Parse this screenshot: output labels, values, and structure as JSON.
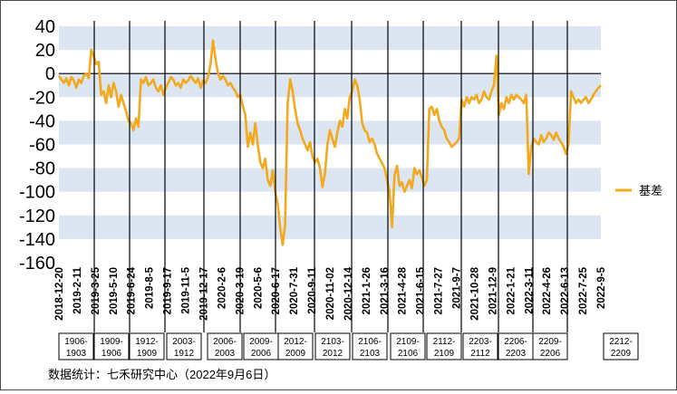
{
  "chart_data": {
    "type": "line",
    "title": "",
    "xlabel": "",
    "ylabel": "",
    "ylim": [
      -160,
      40
    ],
    "yticks": [
      40,
      20,
      0,
      -20,
      -40,
      -60,
      -80,
      -100,
      -120,
      -140,
      -160
    ],
    "xlim": [
      "2018-12-20",
      "2022-09-05"
    ],
    "xticks": [
      "2018-12-20",
      "2019-2-11",
      "2019-3-25",
      "2019-5-10",
      "2019-6-24",
      "2019-8-5",
      "2019-9-17",
      "2019-11-5",
      "2019-12-17",
      "2020-2-6",
      "2020-3-19",
      "2020-5-6",
      "2020-6-17",
      "2020-7-31",
      "2020-9-11",
      "2020-11-02",
      "2020-12-14",
      "2021-1-26",
      "2021-3-16",
      "2021-4-28",
      "2021-6-15",
      "2021-7-27",
      "2021-9-7",
      "2021-10-28",
      "2021-12-9",
      "2022-1-21",
      "2022-3-11",
      "2022-4-26",
      "2022-6-13",
      "2022-7-25",
      "2022-9-5"
    ],
    "grid": "alternating horizontal bands",
    "legend": "right",
    "contract_labels": [
      [
        "1906-",
        "1903"
      ],
      [
        "1909-",
        "1906"
      ],
      [
        "1912-",
        "1909"
      ],
      [
        "2003-",
        "1912"
      ],
      [
        "2006-",
        "2003"
      ],
      [
        "2009-",
        "2006"
      ],
      [
        "2012-",
        "2009"
      ],
      [
        "2103-",
        "2012"
      ],
      [
        "2106-",
        "2103"
      ],
      [
        "2109-",
        "2106"
      ],
      [
        "2112-",
        "2109"
      ],
      [
        "2203-",
        "2112"
      ],
      [
        "2206-",
        "2203"
      ],
      [
        "2209-",
        "2206"
      ],
      [
        "2212-",
        "2209"
      ]
    ],
    "series": [
      {
        "name": "基差",
        "color": "#F2A91E",
        "values": [
          -2,
          -5,
          -8,
          -4,
          -10,
          -3,
          -6,
          -12,
          -5,
          -8,
          -2,
          0,
          -4,
          20,
          15,
          8,
          10,
          -18,
          -15,
          -25,
          -10,
          -20,
          -8,
          -15,
          -28,
          -18,
          -25,
          -32,
          -40,
          -42,
          -48,
          -38,
          -45,
          -5,
          -8,
          -3,
          -10,
          -8,
          -5,
          -12,
          -15,
          -10,
          -18,
          -12,
          -8,
          -3,
          -5,
          -10,
          -8,
          -12,
          -5,
          -8,
          -6,
          -2,
          -5,
          -8,
          -4,
          -12,
          -6,
          -8,
          -3,
          8,
          28,
          12,
          0,
          -5,
          -2,
          -5,
          -10,
          -8,
          -12,
          -15,
          -20,
          -18,
          -28,
          -35,
          -62,
          -50,
          -60,
          -42,
          -60,
          -75,
          -80,
          -72,
          -90,
          -95,
          -82,
          -100,
          -110,
          -130,
          -145,
          -128,
          -25,
          -5,
          -15,
          -30,
          -42,
          -48,
          -55,
          -60,
          -65,
          -58,
          -70,
          -75,
          -72,
          -80,
          -96,
          -85,
          -60,
          -48,
          -55,
          -62,
          -50,
          -40,
          -45,
          -30,
          -38,
          -20,
          -15,
          -5,
          -10,
          -22,
          -42,
          -48,
          -50,
          -58,
          -55,
          -60,
          -68,
          -72,
          -76,
          -80,
          -90,
          -100,
          -130,
          -86,
          -78,
          -95,
          -92,
          -100,
          -95,
          -90,
          -97,
          -80,
          -85,
          -82,
          -88,
          -95,
          -90,
          -30,
          -28,
          -35,
          -30,
          -40,
          -45,
          -48,
          -55,
          -58,
          -62,
          -60,
          -58,
          -55,
          -22,
          -28,
          -20,
          -25,
          -20,
          -22,
          -18,
          -25,
          -22,
          -15,
          -20,
          -22,
          -15,
          -10,
          15,
          -35,
          -25,
          -30,
          -20,
          -25,
          -18,
          -22,
          -18,
          -20,
          -22,
          -25,
          -18,
          -85,
          -62,
          -55,
          -58,
          -60,
          -52,
          -58,
          -55,
          -50,
          -52,
          -56,
          -50,
          -55,
          -58,
          -62,
          -68,
          -60,
          -15,
          -20,
          -25,
          -22,
          -25,
          -22,
          -20,
          -25,
          -22,
          -18,
          -15,
          -12,
          -10
        ]
      }
    ]
  },
  "source_note": "数据统计：七禾研究中心（2022年9月6日）"
}
